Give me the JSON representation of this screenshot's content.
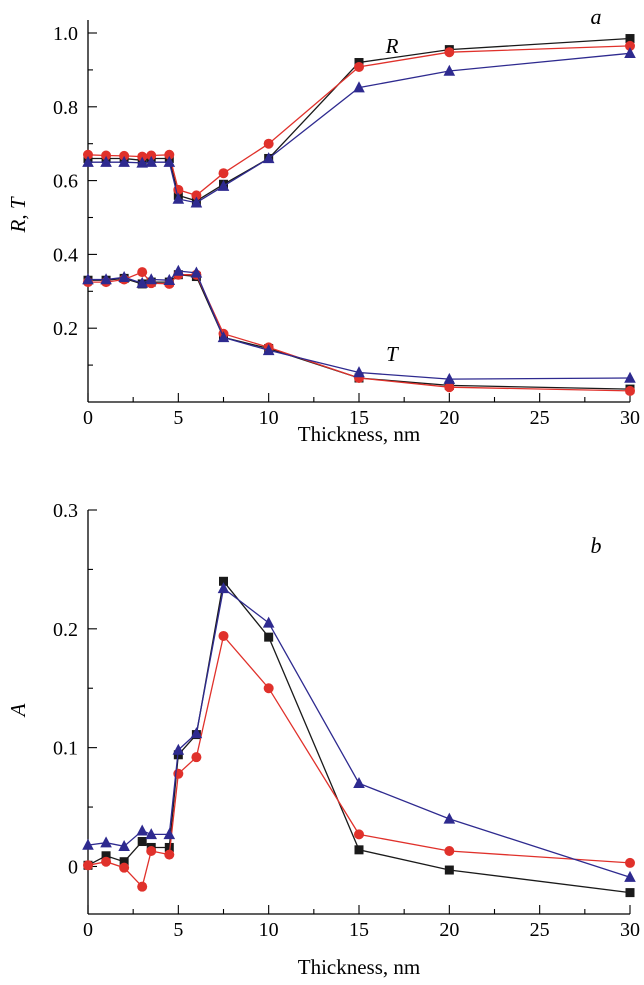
{
  "chart_data": [
    {
      "panel": "a",
      "type": "line",
      "xlabel": "Thickness, nm",
      "ylabel": "R, T",
      "xlim": [
        0,
        30
      ],
      "ylim": [
        0.0,
        1.0
      ],
      "xticks": [
        "0",
        "5",
        "10",
        "15",
        "20",
        "25",
        "30"
      ],
      "yticks": [
        "0.2",
        "0.4",
        "0.6",
        "0.8",
        "1.0"
      ],
      "labels": {
        "letter": "a",
        "R": "R",
        "T": "T"
      },
      "colors": {
        "black": "#1a1a1a",
        "red": "#e0312b",
        "blue": "#2e2a8f"
      },
      "x": [
        0,
        1,
        2,
        3,
        3.5,
        4.5,
        5,
        6,
        7.5,
        10,
        15,
        20,
        30
      ],
      "series": [
        {
          "quantity": "R",
          "color": "black",
          "marker": "square",
          "values": [
            0.66,
            0.66,
            0.66,
            0.655,
            0.66,
            0.66,
            0.56,
            0.545,
            0.59,
            0.66,
            0.92,
            0.955,
            0.985
          ]
        },
        {
          "quantity": "R",
          "color": "red",
          "marker": "circle",
          "values": [
            0.67,
            0.668,
            0.667,
            0.665,
            0.668,
            0.67,
            0.575,
            0.56,
            0.62,
            0.7,
            0.908,
            0.948,
            0.965
          ]
        },
        {
          "quantity": "R",
          "color": "blue",
          "marker": "triangle",
          "values": [
            0.65,
            0.65,
            0.65,
            0.648,
            0.65,
            0.65,
            0.55,
            0.54,
            0.585,
            0.66,
            0.852,
            0.897,
            0.945
          ]
        },
        {
          "quantity": "T",
          "color": "black",
          "marker": "square",
          "values": [
            0.33,
            0.33,
            0.335,
            0.32,
            0.325,
            0.325,
            0.345,
            0.34,
            0.175,
            0.145,
            0.065,
            0.045,
            0.035
          ]
        },
        {
          "quantity": "T",
          "color": "red",
          "marker": "circle",
          "values": [
            0.325,
            0.325,
            0.332,
            0.352,
            0.322,
            0.32,
            0.345,
            0.345,
            0.185,
            0.148,
            0.065,
            0.04,
            0.03
          ]
        },
        {
          "quantity": "T",
          "color": "blue",
          "marker": "triangle",
          "values": [
            0.332,
            0.332,
            0.338,
            0.322,
            0.332,
            0.33,
            0.355,
            0.35,
            0.175,
            0.14,
            0.08,
            0.062,
            0.065
          ]
        }
      ]
    },
    {
      "panel": "b",
      "type": "line",
      "xlabel": "Thickness, nm",
      "ylabel": "A",
      "xlim": [
        0,
        30
      ],
      "ylim": [
        -0.04,
        0.3
      ],
      "xticks": [
        "0",
        "5",
        "10",
        "15",
        "20",
        "25",
        "30"
      ],
      "yticks": [
        "0",
        "0.1",
        "0.2",
        "0.3"
      ],
      "labels": {
        "letter": "b"
      },
      "colors": {
        "black": "#1a1a1a",
        "red": "#e0312b",
        "blue": "#2e2a8f"
      },
      "x": [
        0,
        1,
        2,
        3,
        3.5,
        4.5,
        5,
        6,
        7.5,
        10,
        15,
        20,
        30
      ],
      "series": [
        {
          "color": "black",
          "marker": "square",
          "values": [
            0.001,
            0.009,
            0.004,
            0.021,
            0.016,
            0.016,
            0.094,
            0.111,
            0.24,
            0.193,
            0.014,
            -0.003,
            -0.022
          ]
        },
        {
          "color": "red",
          "marker": "circle",
          "values": [
            0.001,
            0.004,
            -0.001,
            -0.017,
            0.013,
            0.01,
            0.078,
            0.092,
            0.194,
            0.15,
            0.027,
            0.013,
            0.003
          ]
        },
        {
          "color": "blue",
          "marker": "triangle",
          "values": [
            0.018,
            0.02,
            0.017,
            0.03,
            0.027,
            0.027,
            0.098,
            0.112,
            0.234,
            0.205,
            0.07,
            0.04,
            -0.009
          ]
        }
      ]
    }
  ]
}
